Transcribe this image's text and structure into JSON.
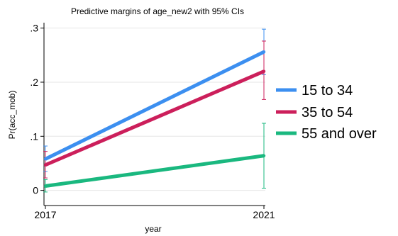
{
  "chart_data": {
    "type": "line",
    "title": "Predictive margins of age_new2 with 95% CIs",
    "xlabel": "year",
    "ylabel": "Pr(acc_mob)",
    "x": [
      "2017",
      "2021"
    ],
    "x_ticks": [
      "2017",
      "2021"
    ],
    "y_ticks": [
      {
        "value": 0,
        "label": "0"
      },
      {
        "value": 0.1,
        "label": ".1"
      },
      {
        "value": 0.2,
        "label": ".2"
      },
      {
        "value": 0.3,
        "label": ".3"
      }
    ],
    "ylim": [
      -0.028,
      0.31
    ],
    "grid": true,
    "legend_position": "right",
    "series": [
      {
        "name": "15 to 34",
        "color": "#3c8ff0",
        "values": [
          0.058,
          0.256
        ],
        "ci_low": [
          0.035,
          0.214
        ],
        "ci_high": [
          0.082,
          0.298
        ]
      },
      {
        "name": "35 to 54",
        "color": "#cc1f5b",
        "values": [
          0.047,
          0.22
        ],
        "ci_low": [
          0.023,
          0.168
        ],
        "ci_high": [
          0.072,
          0.276
        ]
      },
      {
        "name": "55 and over",
        "color": "#1ab87f",
        "values": [
          0.008,
          0.064
        ],
        "ci_low": [
          -0.003,
          0.004
        ],
        "ci_high": [
          0.02,
          0.124
        ]
      }
    ]
  }
}
